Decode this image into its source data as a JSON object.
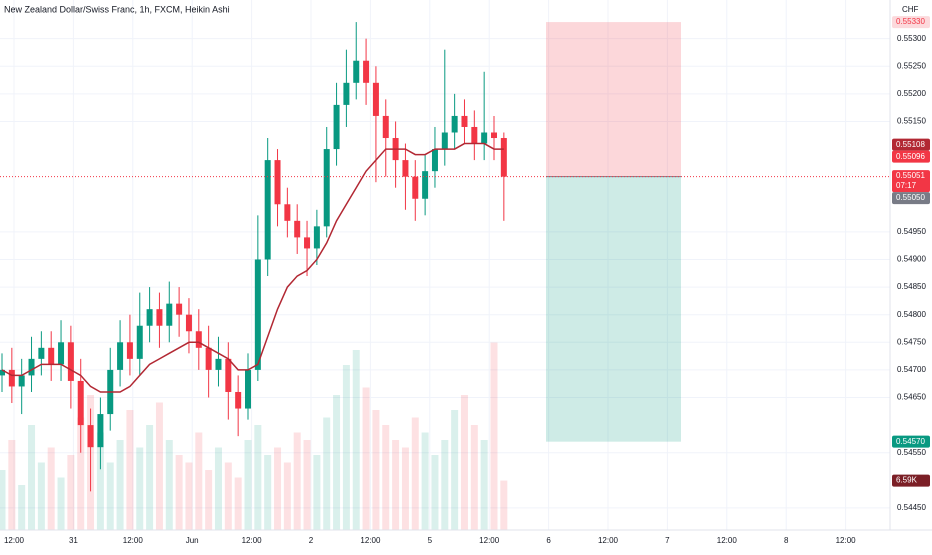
{
  "chart_data": {
    "type": "candlestick",
    "title": "New Zealand Dollar/Swiss Franc, 1h, FXCM, Heikin Ashi",
    "currency": "CHF",
    "ylim": [
      0.5441,
      0.5537
    ],
    "yticks": [
      {
        "value": 0.553,
        "label": "0.55300"
      },
      {
        "value": 0.5525,
        "label": "0.55250"
      },
      {
        "value": 0.552,
        "label": "0.55200"
      },
      {
        "value": 0.5515,
        "label": "0.55150"
      },
      {
        "value": 0.5495,
        "label": "0.54950"
      },
      {
        "value": 0.549,
        "label": "0.54900"
      },
      {
        "value": 0.5485,
        "label": "0.54850"
      },
      {
        "value": 0.548,
        "label": "0.54800"
      },
      {
        "value": 0.5475,
        "label": "0.54750"
      },
      {
        "value": 0.547,
        "label": "0.54700"
      },
      {
        "value": 0.5465,
        "label": "0.54650"
      },
      {
        "value": 0.5455,
        "label": "0.54550"
      },
      {
        "value": 0.5445,
        "label": "0.54450"
      }
    ],
    "xlabels": [
      "12:00",
      "31",
      "12:00",
      "Jun",
      "12:00",
      "2",
      "12:00",
      "5",
      "12:00",
      "6",
      "12:00",
      "7",
      "12:00",
      "8",
      "12:00"
    ],
    "up_color": "#089981",
    "down_color": "#f23645",
    "ma_color": "#b22833",
    "open": [
      0.5469,
      0.547,
      0.5467,
      0.5469,
      0.5472,
      0.5474,
      0.5471,
      0.5475,
      0.5468,
      0.546,
      0.5456,
      0.5462,
      0.547,
      0.5475,
      0.5472,
      0.5478,
      0.5481,
      0.5478,
      0.5482,
      0.548,
      0.5477,
      0.5474,
      0.547,
      0.5472,
      0.5466,
      0.5463,
      0.547,
      0.549,
      0.5508,
      0.55,
      0.5497,
      0.5494,
      0.5492,
      0.5496,
      0.551,
      0.5518,
      0.5522,
      0.5526,
      0.5522,
      0.5516,
      0.5512,
      0.5508,
      0.5505,
      0.5501,
      0.5506,
      0.551,
      0.5513,
      0.5516,
      0.5514,
      0.5511,
      0.5513,
      0.5512
    ],
    "high": [
      0.5473,
      0.5474,
      0.5472,
      0.5476,
      0.5477,
      0.5477,
      0.5479,
      0.5478,
      0.5472,
      0.5463,
      0.5465,
      0.5474,
      0.5479,
      0.548,
      0.5484,
      0.5485,
      0.5484,
      0.5486,
      0.5485,
      0.5483,
      0.5481,
      0.5478,
      0.5476,
      0.5475,
      0.5469,
      0.5473,
      0.5498,
      0.5512,
      0.551,
      0.5503,
      0.55,
      0.5497,
      0.5499,
      0.5514,
      0.5522,
      0.5528,
      0.5533,
      0.553,
      0.5525,
      0.5519,
      0.5515,
      0.5511,
      0.5508,
      0.5509,
      0.5514,
      0.5528,
      0.552,
      0.5519,
      0.5517,
      0.5524,
      0.5516,
      0.5513
    ],
    "low": [
      0.5466,
      0.5464,
      0.5462,
      0.5466,
      0.5469,
      0.5468,
      0.5468,
      0.5463,
      0.5455,
      0.5448,
      0.5452,
      0.5459,
      0.5467,
      0.5469,
      0.5469,
      0.5475,
      0.5474,
      0.5475,
      0.5476,
      0.5473,
      0.547,
      0.5465,
      0.5467,
      0.5461,
      0.5458,
      0.5461,
      0.5468,
      0.5487,
      0.5496,
      0.5494,
      0.5491,
      0.5487,
      0.5489,
      0.5494,
      0.5507,
      0.5514,
      0.5519,
      0.5518,
      0.5504,
      0.5505,
      0.5503,
      0.5499,
      0.5497,
      0.5498,
      0.5503,
      0.5507,
      0.551,
      0.5511,
      0.5508,
      0.5508,
      0.5508,
      0.5497
    ],
    "close": [
      0.547,
      0.5467,
      0.5469,
      0.5472,
      0.5474,
      0.5471,
      0.5475,
      0.5468,
      0.546,
      0.5456,
      0.5462,
      0.547,
      0.5475,
      0.5472,
      0.5478,
      0.5481,
      0.5478,
      0.5482,
      0.548,
      0.5477,
      0.5474,
      0.547,
      0.5472,
      0.5466,
      0.5463,
      0.547,
      0.549,
      0.5508,
      0.55,
      0.5497,
      0.5494,
      0.5492,
      0.5496,
      0.551,
      0.5518,
      0.5522,
      0.5526,
      0.5522,
      0.5516,
      0.5512,
      0.5508,
      0.5505,
      0.5501,
      0.5506,
      0.551,
      0.5513,
      0.5516,
      0.5514,
      0.5511,
      0.5513,
      0.5512,
      0.5505
    ],
    "ma": [
      0.547,
      0.5469,
      0.5469,
      0.547,
      0.5471,
      0.5471,
      0.5471,
      0.547,
      0.5469,
      0.5467,
      0.5466,
      0.5466,
      0.5466,
      0.5467,
      0.5469,
      0.5471,
      0.5472,
      0.5473,
      0.5474,
      0.5475,
      0.5475,
      0.5474,
      0.5473,
      0.5472,
      0.547,
      0.547,
      0.5471,
      0.5476,
      0.5481,
      0.5485,
      0.5487,
      0.5488,
      0.549,
      0.5493,
      0.5497,
      0.55,
      0.5503,
      0.5506,
      0.5508,
      0.551,
      0.551,
      0.551,
      0.5509,
      0.5509,
      0.551,
      0.551,
      0.551,
      0.5511,
      0.5511,
      0.5511,
      0.551,
      0.551
    ],
    "volume": [
      8,
      12,
      6,
      14,
      9,
      11,
      7,
      10,
      15,
      18,
      13,
      9,
      12,
      16,
      11,
      14,
      17,
      12,
      10,
      9,
      13,
      8,
      11,
      9,
      7,
      12,
      14,
      10,
      11,
      9,
      13,
      12,
      10,
      15,
      18,
      22,
      24,
      19,
      16,
      14,
      12,
      11,
      15,
      13,
      10,
      12,
      16,
      18,
      14,
      12,
      25,
      6.59
    ],
    "vlim": [
      0,
      40
    ],
    "volume_label": "6.59K",
    "position": {
      "stop": 0.5533,
      "entry": 0.5505,
      "target": 0.5457
    },
    "price_tags": [
      {
        "label": "0.55330",
        "value": 0.5533,
        "bg": "#fcd9dc",
        "fg": "#f23645"
      },
      {
        "label": "0.55108",
        "value": 0.55108,
        "bg": "#b22833",
        "fg": "#ffffff"
      },
      {
        "label": "0.55096",
        "value": 0.55096,
        "bg": "#f23645",
        "fg": "#ffffff"
      },
      {
        "label": "0.55051",
        "value": 0.55051,
        "bg": "#f23645",
        "fg": "#ffffff",
        "sub": "07:17"
      },
      {
        "label": "0.55050",
        "value": 0.5505,
        "bg": "#787b86",
        "fg": "#ffffff"
      },
      {
        "label": "0.54570",
        "value": 0.5457,
        "bg": "#089981",
        "fg": "#ffffff"
      }
    ]
  }
}
